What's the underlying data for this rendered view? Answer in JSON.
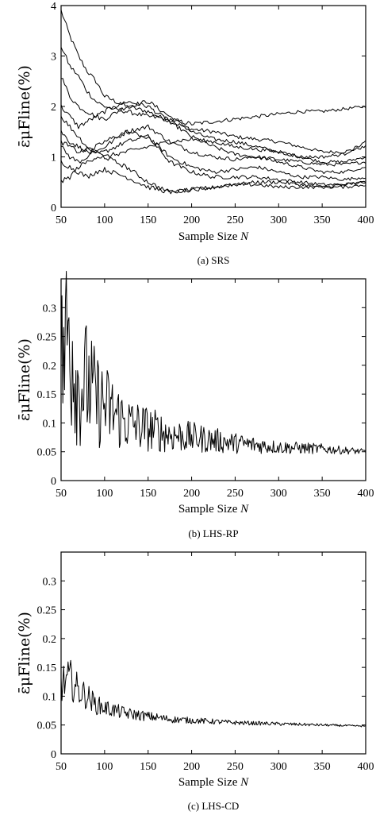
{
  "chart_data": [
    {
      "type": "line",
      "caption": "(a) SRS",
      "ylabel_text": "ε̄μFline(%)",
      "xlabel_text": "Sample Size",
      "xlabel_var": "N",
      "xlim": [
        50,
        400
      ],
      "ylim": [
        0,
        4
      ],
      "xticks": [
        50,
        100,
        150,
        200,
        250,
        300,
        350,
        400
      ],
      "yticks": [
        0,
        1,
        2,
        3,
        4
      ],
      "x": [
        50,
        60,
        70,
        80,
        90,
        100,
        125,
        150,
        175,
        200,
        225,
        250,
        275,
        300,
        325,
        350,
        375,
        400
      ],
      "series": [
        {
          "values": [
            3.9,
            3.4,
            3.0,
            2.7,
            2.5,
            2.2,
            2.0,
            1.9,
            1.7,
            1.55,
            1.5,
            1.4,
            1.35,
            1.3,
            1.2,
            1.1,
            1.1,
            1.2
          ]
        },
        {
          "values": [
            3.2,
            2.8,
            2.6,
            2.3,
            2.1,
            2.0,
            1.9,
            1.8,
            1.75,
            1.65,
            1.7,
            1.75,
            1.8,
            1.85,
            1.9,
            1.9,
            1.95,
            2.0
          ]
        },
        {
          "values": [
            2.6,
            2.2,
            2.0,
            1.9,
            1.8,
            1.75,
            2.0,
            2.1,
            1.8,
            1.5,
            1.35,
            1.3,
            1.2,
            1.1,
            1.0,
            0.9,
            0.9,
            1.0
          ]
        },
        {
          "values": [
            2.0,
            1.8,
            1.6,
            1.7,
            1.8,
            1.9,
            2.1,
            2.0,
            1.7,
            1.4,
            1.2,
            1.05,
            1.0,
            0.95,
            0.9,
            0.85,
            0.85,
            0.9
          ]
        },
        {
          "values": [
            1.8,
            1.6,
            1.4,
            1.2,
            1.1,
            1.2,
            1.5,
            1.6,
            1.3,
            1.1,
            1.0,
            0.95,
            1.0,
            0.9,
            0.8,
            0.7,
            0.7,
            0.8
          ]
        },
        {
          "values": [
            1.5,
            1.3,
            1.2,
            1.1,
            1.05,
            1.1,
            1.3,
            1.4,
            1.0,
            0.8,
            0.7,
            0.75,
            0.8,
            0.7,
            0.6,
            0.6,
            0.55,
            0.6
          ]
        },
        {
          "values": [
            1.2,
            1.0,
            0.9,
            1.0,
            1.2,
            1.3,
            1.5,
            1.4,
            0.9,
            0.7,
            0.6,
            0.6,
            0.6,
            0.55,
            0.5,
            0.45,
            0.45,
            0.5
          ]
        },
        {
          "values": [
            0.9,
            0.8,
            0.7,
            0.6,
            0.7,
            0.75,
            0.6,
            0.4,
            0.3,
            0.35,
            0.4,
            0.45,
            0.5,
            0.5,
            0.45,
            0.4,
            0.45,
            0.5
          ]
        },
        {
          "values": [
            0.5,
            0.6,
            0.8,
            0.9,
            1.0,
            1.0,
            1.1,
            1.2,
            1.3,
            1.35,
            1.3,
            1.2,
            1.15,
            1.1,
            1.0,
            1.0,
            1.05,
            1.3
          ]
        },
        {
          "values": [
            1.3,
            1.2,
            1.1,
            1.15,
            1.1,
            1.0,
            0.8,
            0.5,
            0.3,
            0.35,
            0.4,
            0.45,
            0.45,
            0.4,
            0.4,
            0.4,
            0.4,
            0.45
          ]
        }
      ]
    },
    {
      "type": "line",
      "caption": "(b) LHS-RP",
      "ylabel_text": "ε̄μFline(%)",
      "xlabel_text": "Sample Size",
      "xlabel_var": "N",
      "xlim": [
        50,
        400
      ],
      "ylim": [
        0,
        0.35
      ],
      "xticks": [
        50,
        100,
        150,
        200,
        250,
        300,
        350,
        400
      ],
      "yticks": [
        0,
        0.05,
        0.1,
        0.15,
        0.2,
        0.25,
        0.3
      ],
      "x": [
        50,
        60,
        70,
        80,
        90,
        100,
        125,
        150,
        175,
        200,
        250,
        300,
        350,
        400
      ],
      "series": [
        {
          "values": [
            0.2,
            0.27,
            0.16,
            0.17,
            0.14,
            0.13,
            0.1,
            0.09,
            0.08,
            0.075,
            0.065,
            0.058,
            0.055,
            0.05
          ]
        }
      ]
    },
    {
      "type": "line",
      "caption": "(c) LHS-CD",
      "ylabel_text": "ε̄μFline(%)",
      "xlabel_text": "Sample Size",
      "xlabel_var": "N",
      "xlim": [
        50,
        400
      ],
      "ylim": [
        0,
        0.35
      ],
      "xticks": [
        50,
        100,
        150,
        200,
        250,
        300,
        350,
        400
      ],
      "yticks": [
        0,
        0.05,
        0.1,
        0.15,
        0.2,
        0.25,
        0.3
      ],
      "x": [
        50,
        60,
        70,
        80,
        90,
        100,
        125,
        150,
        175,
        200,
        250,
        300,
        350,
        400
      ],
      "series": [
        {
          "values": [
            0.12,
            0.13,
            0.11,
            0.1,
            0.085,
            0.08,
            0.07,
            0.065,
            0.06,
            0.058,
            0.054,
            0.052,
            0.05,
            0.048
          ]
        }
      ]
    }
  ]
}
